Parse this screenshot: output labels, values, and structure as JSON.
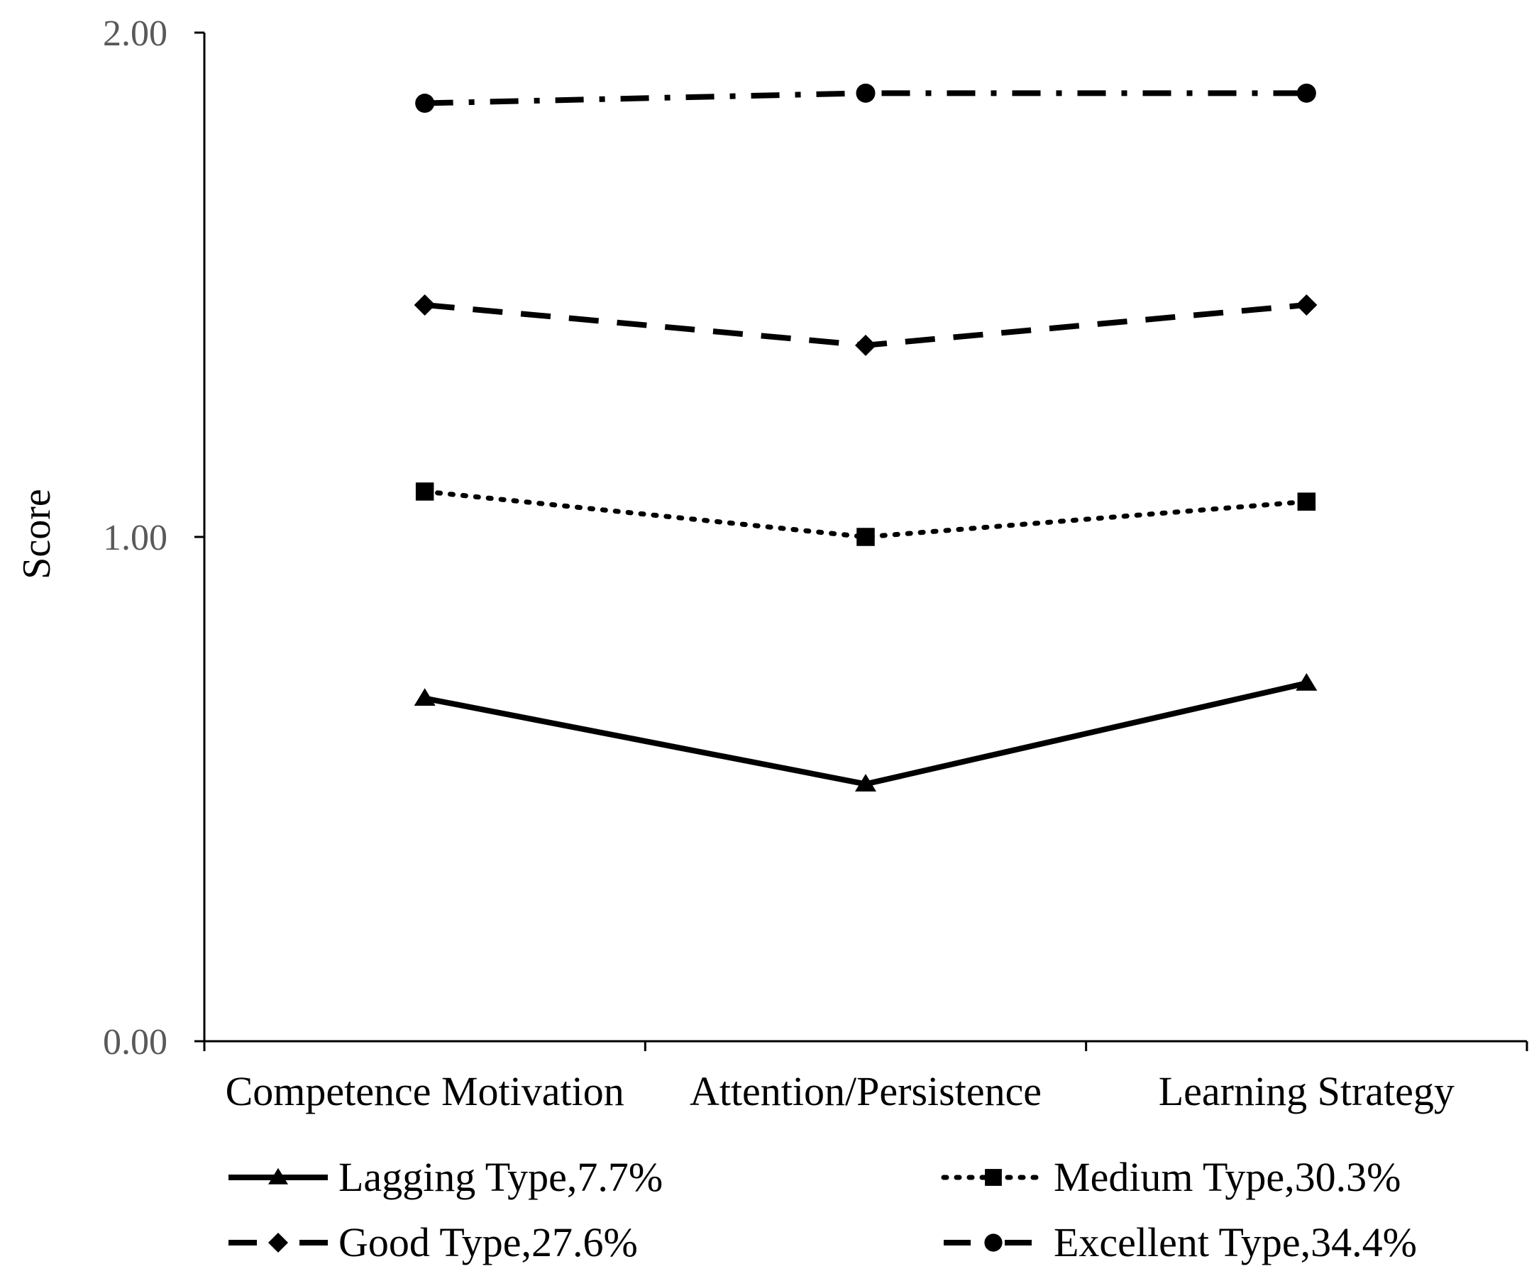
{
  "chart_data": {
    "type": "line",
    "title": "",
    "xlabel": "",
    "ylabel": "Score",
    "ylim": [
      0,
      2
    ],
    "yticks": [
      "0.00",
      "1.00",
      "2.00"
    ],
    "categories": [
      "Competence Motivation",
      "Attention/Persistence",
      "Learning Strategy"
    ],
    "grid": false,
    "legend_position": "bottom",
    "series": [
      {
        "name": "Lagging Type,7.7%",
        "values": [
          0.68,
          0.51,
          0.71
        ],
        "line_style": "solid",
        "marker": "triangle",
        "color": "#000000"
      },
      {
        "name": "Medium Type,30.3%",
        "values": [
          1.09,
          1.0,
          1.07
        ],
        "line_style": "dotted",
        "marker": "square",
        "color": "#000000"
      },
      {
        "name": "Good Type,27.6%",
        "values": [
          1.46,
          1.38,
          1.46
        ],
        "line_style": "dashed",
        "marker": "diamond",
        "color": "#000000"
      },
      {
        "name": "Excellent Type,34.4%",
        "values": [
          1.86,
          1.88,
          1.88
        ],
        "line_style": "dash-dot",
        "marker": "circle",
        "color": "#000000"
      }
    ]
  }
}
